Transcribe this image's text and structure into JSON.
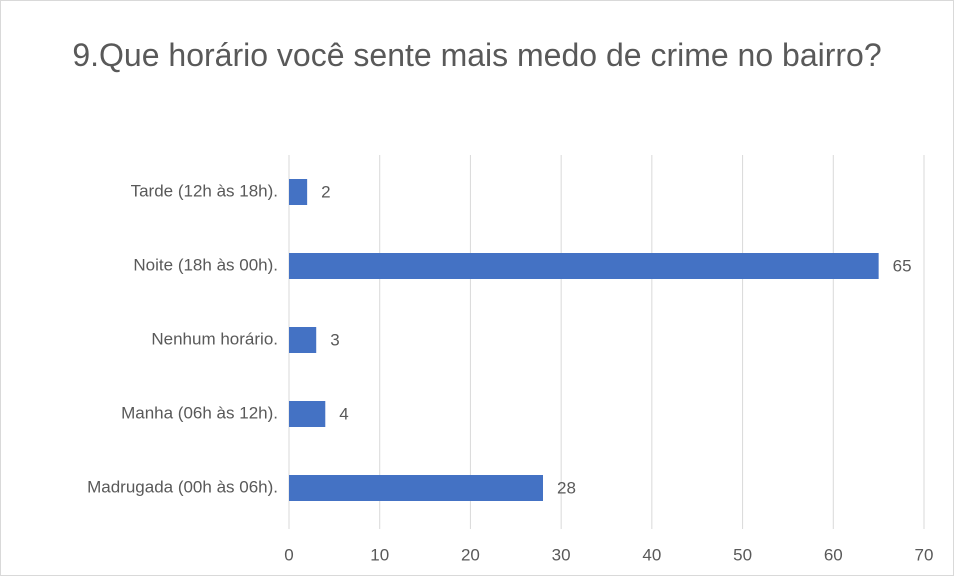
{
  "chart_data": {
    "type": "bar",
    "orientation": "horizontal",
    "title": "9.Que horário você sente mais medo de crime no bairro?",
    "categories": [
      "Tarde (12h às 18h).",
      "Noite (18h às 00h).",
      "Nenhum horário.",
      "Manha (06h às 12h).",
      "Madrugada (00h às 06h)."
    ],
    "values": [
      2,
      65,
      3,
      4,
      28
    ],
    "color": "#4472c4",
    "xlim": [
      0,
      70
    ],
    "xticks": [
      0,
      10,
      20,
      30,
      40,
      50,
      60,
      70
    ],
    "grid": true
  }
}
